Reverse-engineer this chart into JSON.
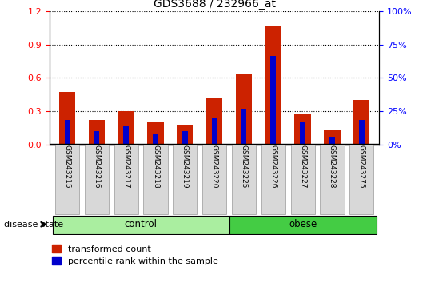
{
  "title": "GDS3688 / 232966_at",
  "samples": [
    "GSM243215",
    "GSM243216",
    "GSM243217",
    "GSM243218",
    "GSM243219",
    "GSM243220",
    "GSM243225",
    "GSM243226",
    "GSM243227",
    "GSM243228",
    "GSM243275"
  ],
  "transformed_count": [
    0.47,
    0.22,
    0.3,
    0.2,
    0.18,
    0.42,
    0.64,
    1.07,
    0.27,
    0.13,
    0.4
  ],
  "percentile_rank_left": [
    0.22,
    0.12,
    0.16,
    0.1,
    0.12,
    0.24,
    0.32,
    0.8,
    0.2,
    0.07,
    0.22
  ],
  "groups": [
    {
      "label": "control",
      "start": 0,
      "end": 6,
      "color": "#aaeea0"
    },
    {
      "label": "obese",
      "start": 6,
      "end": 11,
      "color": "#44cc44"
    }
  ],
  "ylim_left": [
    0,
    1.2
  ],
  "ylim_right": [
    0,
    100
  ],
  "yticks_left": [
    0,
    0.3,
    0.6,
    0.9,
    1.2
  ],
  "yticks_right": [
    0,
    25,
    50,
    75,
    100
  ],
  "bar_color_red": "#cc2200",
  "bar_color_blue": "#0000cc",
  "red_bar_width": 0.55,
  "blue_bar_width": 0.18,
  "label_transformed": "transformed count",
  "label_percentile": "percentile rank within the sample",
  "disease_state_label": "disease state",
  "plot_bg": "#ffffff",
  "xtick_bg": "#d8d8d8"
}
